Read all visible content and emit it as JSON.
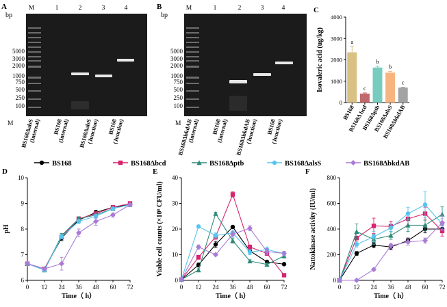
{
  "panelA": {
    "letter": "A",
    "unit": "bp",
    "lanes": [
      "M",
      "1",
      "2",
      "3",
      "4"
    ],
    "marker_bp": [
      "5000",
      "3000",
      "2000",
      "1000",
      "750",
      "500",
      "250",
      "100"
    ],
    "bottom_m": "M",
    "labels": [
      [
        "BS168ΔalsS",
        "(Internal)"
      ],
      [
        "BS168",
        "(Internal)"
      ],
      [
        "BS168ΔalsS",
        "(Junction)"
      ],
      [
        "BS168",
        "(Junction)"
      ]
    ]
  },
  "panelB": {
    "letter": "B",
    "unit": "bp",
    "lanes": [
      "M",
      "1",
      "2",
      "3",
      "4"
    ],
    "marker_bp": [
      "5000",
      "3000",
      "2000",
      "1000",
      "750",
      "500",
      "250",
      "100"
    ],
    "bottom_m": "M",
    "labels": [
      [
        "BS168ΔbkdAB",
        "(Internal)"
      ],
      [
        "BS168",
        "(Internal)"
      ],
      [
        "BS168ΔbkdAB",
        "(Junction)"
      ],
      [
        "BS168",
        "(Junction)"
      ]
    ]
  },
  "legend": {
    "items": [
      {
        "label": "BS168",
        "color": "#000000",
        "marker": "circle"
      },
      {
        "label": "BS168Δbcd",
        "color": "#d6246e",
        "marker": "square"
      },
      {
        "label": "BS168Δptb",
        "color": "#2f8a78",
        "marker": "triangle"
      },
      {
        "label": "BS168ΔalsS",
        "color": "#55c5ee",
        "marker": "circle"
      },
      {
        "label": "BS168ΔbkdAB",
        "color": "#a97bd6",
        "marker": "diamond"
      }
    ]
  },
  "chart_data": [
    {
      "panel": "C",
      "type": "bar",
      "ylabel": "Isovaleric acid (ug/kg)",
      "ylim": [
        0,
        4000
      ],
      "yticks": [
        "0",
        "1000",
        "2000",
        "3000",
        "4000"
      ],
      "categories": [
        "BS168",
        "BS168Δ bcd",
        "BS168Δptb",
        "BS168ΔalsS",
        "BS168ΔbkdAB"
      ],
      "values": [
        2350,
        420,
        1640,
        1400,
        700
      ],
      "errors": [
        280,
        30,
        60,
        60,
        20
      ],
      "letters": [
        "a",
        "c",
        "b",
        "b",
        "c"
      ],
      "colors": [
        "#d9c083",
        "#c2696b",
        "#78ccbf",
        "#f7b47f",
        "#a3a3a3"
      ]
    },
    {
      "panel": "D",
      "type": "line",
      "xlabel": "Time（ h）",
      "ylabel": "pH",
      "x": [
        0,
        12,
        24,
        36,
        48,
        60,
        72
      ],
      "xlim": [
        0,
        72
      ],
      "ylim": [
        6,
        10
      ],
      "xticks": [
        "0",
        "12",
        "24",
        "36",
        "48",
        "60",
        "72"
      ],
      "yticks": [
        "6",
        "7",
        "8",
        "9",
        "10"
      ],
      "series": [
        {
          "name": "BS168",
          "values": [
            6.65,
            6.45,
            7.65,
            8.35,
            8.65,
            8.85,
            8.95
          ],
          "err": [
            0.05,
            0.05,
            0.1,
            0.1,
            0.08,
            0.05,
            0.05
          ]
        },
        {
          "name": "BS168Δbcd",
          "values": [
            6.65,
            6.45,
            7.7,
            8.4,
            8.6,
            8.85,
            9.0
          ],
          "err": [
            0.05,
            0.05,
            0.08,
            0.08,
            0.08,
            0.05,
            0.05
          ]
        },
        {
          "name": "BS168Δptb",
          "values": [
            6.65,
            6.4,
            7.75,
            8.4,
            8.55,
            8.8,
            8.95
          ],
          "err": [
            0.05,
            0.05,
            0.08,
            0.08,
            0.08,
            0.05,
            0.05
          ]
        },
        {
          "name": "BS168ΔalsS",
          "values": [
            6.65,
            6.4,
            7.7,
            8.3,
            8.5,
            8.8,
            8.95
          ],
          "err": [
            0.05,
            0.05,
            0.08,
            0.08,
            0.08,
            0.05,
            0.05
          ]
        },
        {
          "name": "BS168ΔbkdAB",
          "values": [
            6.65,
            6.45,
            6.65,
            7.85,
            8.3,
            8.55,
            8.95
          ],
          "err": [
            0.05,
            0.05,
            0.25,
            0.15,
            0.15,
            0.08,
            0.05
          ]
        }
      ]
    },
    {
      "panel": "E",
      "type": "line",
      "xlabel": "Time（ h）",
      "ylabel": "Viable cell counts (×10⁸ CFU/ml)",
      "x": [
        0,
        12,
        24,
        36,
        48,
        60,
        72
      ],
      "xlim": [
        0,
        72
      ],
      "ylim": [
        0,
        40
      ],
      "xticks": [
        "0",
        "12",
        "24",
        "36",
        "48",
        "60",
        "72"
      ],
      "yticks": [
        "0",
        "10",
        "20",
        "30",
        "40"
      ],
      "series": [
        {
          "name": "BS168",
          "values": [
            0.3,
            6,
            14,
            20.8,
            11.5,
            7.2,
            6.3
          ],
          "err": [
            0.2,
            0.8,
            1.2,
            0.5,
            0.8,
            0.5,
            0.5
          ]
        },
        {
          "name": "BS168Δbcd",
          "values": [
            0.3,
            9,
            17,
            33.5,
            13,
            10.5,
            2
          ],
          "err": [
            0.2,
            0.8,
            1,
            1,
            0.8,
            0.8,
            0.4
          ]
        },
        {
          "name": "BS168Δptb",
          "values": [
            0.3,
            4,
            26,
            15.5,
            7.5,
            6.2,
            9.5
          ],
          "err": [
            0.2,
            0.5,
            0.5,
            1,
            0.5,
            0.5,
            0.8
          ]
        },
        {
          "name": "BS168ΔalsS",
          "values": [
            0.3,
            21,
            17.5,
            18.5,
            11,
            12,
            10.5
          ],
          "err": [
            0.2,
            0.5,
            1,
            1,
            1,
            1,
            0.8
          ]
        },
        {
          "name": "BS168ΔbkdAB",
          "values": [
            0.3,
            13,
            10,
            18,
            20.3,
            11.2,
            10.5
          ],
          "err": [
            0.2,
            0.8,
            0.5,
            1,
            1,
            1.2,
            0.8
          ]
        }
      ]
    },
    {
      "panel": "F",
      "type": "line",
      "xlabel": "Time（ h）",
      "ylabel": "Nattokinase activity (IU/ml)",
      "x": [
        0,
        12,
        24,
        36,
        48,
        60,
        72
      ],
      "xlim": [
        0,
        72
      ],
      "ylim": [
        0,
        800
      ],
      "xticks": [
        "0",
        "12",
        "24",
        "36",
        "48",
        "60",
        "72"
      ],
      "yticks": [
        "0",
        "200",
        "400",
        "600",
        "800"
      ],
      "series": [
        {
          "name": "BS168",
          "values": [
            0,
            210,
            275,
            260,
            310,
            400,
            400
          ],
          "err": [
            0,
            15,
            20,
            20,
            20,
            30,
            30
          ]
        },
        {
          "name": "BS168Δbcd",
          "values": [
            0,
            330,
            425,
            420,
            480,
            520,
            385
          ],
          "err": [
            0,
            40,
            60,
            40,
            50,
            50,
            40
          ]
        },
        {
          "name": "BS168Δptb",
          "values": [
            0,
            380,
            320,
            350,
            430,
            430,
            515
          ],
          "err": [
            0,
            60,
            40,
            30,
            50,
            40,
            60
          ]
        },
        {
          "name": "BS168ΔalsS",
          "values": [
            0,
            280,
            340,
            410,
            520,
            590,
            440
          ],
          "err": [
            0,
            20,
            40,
            30,
            50,
            100,
            40
          ]
        },
        {
          "name": "BS168ΔbkdAB",
          "values": [
            0,
            0,
            85,
            270,
            300,
            310,
            450
          ],
          "err": [
            0,
            0,
            10,
            20,
            25,
            20,
            60
          ]
        }
      ]
    }
  ]
}
